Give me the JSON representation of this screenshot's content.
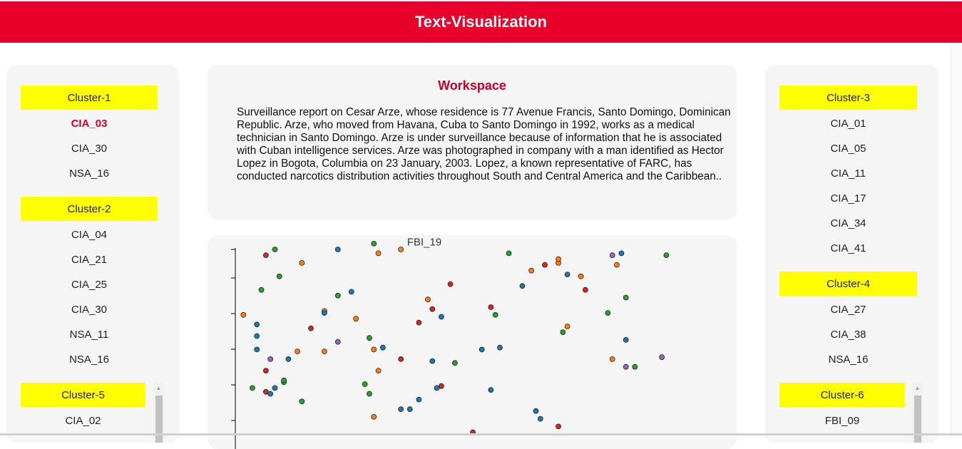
{
  "header": {
    "title": "Text-Visualization"
  },
  "left_panel": {
    "clusters": [
      {
        "label": "Cluster-1",
        "items": [
          "CIA_03",
          "CIA_30",
          "NSA_16"
        ]
      },
      {
        "label": "Cluster-2",
        "items": [
          "CIA_04",
          "CIA_21",
          "CIA_25",
          "CIA_30",
          "NSA_11",
          "NSA_16"
        ]
      },
      {
        "label": "Cluster-5",
        "items": [
          "CIA_02"
        ]
      }
    ],
    "active_item": "CIA_03"
  },
  "right_panel": {
    "clusters": [
      {
        "label": "Cluster-3",
        "items": [
          "CIA_01",
          "CIA_05",
          "CIA_11",
          "CIA_17",
          "CIA_34",
          "CIA_41"
        ]
      },
      {
        "label": "Cluster-4",
        "items": [
          "CIA_27",
          "CIA_38",
          "NSA_16"
        ]
      },
      {
        "label": "Cluster-6",
        "items": [
          "FBI_09"
        ]
      }
    ]
  },
  "workspace": {
    "title": "Workspace",
    "text": "Surveillance report on Cesar Arze, whose residence is 77 Avenue Francis, Santo Domingo, Dominican Republic. Arze, who moved from Havana, Cuba to Santo Domingo in 1992, works as a medical technician in Santo Domingo. Arze is under surveillance because of information that he is associated with Cuban intelligence services. Arze was photographed in company with a man identified as Hector Lopez in Bogota, Columbia on 23 January, 2003. Lopez, a known representative of FARC, has conducted narcotics distribution activities throughout South and Central America and the Caribbean.."
  },
  "scatter": {
    "hover_label": "FBI_19",
    "colors": {
      "red": "#d62728",
      "orange": "#ff7f0e",
      "blue": "#1f77b4",
      "green": "#2ca02c",
      "purple": "#9467bd"
    }
  },
  "chart_data": {
    "type": "scatter",
    "title": "",
    "xlabel": "",
    "ylabel": "",
    "grid": false,
    "xlim": [
      0,
      100
    ],
    "ylim": [
      0,
      100
    ],
    "series": [
      {
        "color": "red",
        "points": [
          [
            6,
            97
          ],
          [
            43,
            69
          ],
          [
            40,
            62
          ],
          [
            47,
            82
          ],
          [
            56,
            70
          ],
          [
            68,
            92
          ],
          [
            77,
            79
          ],
          [
            16,
            59
          ],
          [
            36,
            43
          ],
          [
            6,
            37
          ],
          [
            45,
            29
          ],
          [
            6,
            26
          ],
          [
            52,
            5
          ],
          [
            71,
            8
          ]
        ]
      },
      {
        "color": "orange",
        "points": [
          [
            14,
            93
          ],
          [
            31,
            98
          ],
          [
            36,
            100
          ],
          [
            42,
            74
          ],
          [
            26,
            64
          ],
          [
            19,
            68
          ],
          [
            30,
            48
          ],
          [
            65,
            89
          ],
          [
            76,
            86
          ],
          [
            71,
            93
          ],
          [
            71,
            95
          ],
          [
            73,
            60
          ],
          [
            84,
            92
          ],
          [
            13,
            47
          ],
          [
            19,
            47
          ],
          [
            83,
            43
          ],
          [
            31,
            37
          ],
          [
            1,
            66
          ],
          [
            30,
            13
          ]
        ]
      },
      {
        "color": "blue",
        "points": [
          [
            22,
            100
          ],
          [
            25,
            78
          ],
          [
            63,
            81
          ],
          [
            73,
            87
          ],
          [
            85,
            98
          ],
          [
            19,
            67
          ],
          [
            4,
            61
          ],
          [
            4,
            55
          ],
          [
            45,
            65
          ],
          [
            58,
            49
          ],
          [
            32,
            49
          ],
          [
            43,
            42
          ],
          [
            86,
            53
          ],
          [
            54,
            48
          ],
          [
            56,
            27
          ],
          [
            4,
            48
          ],
          [
            11,
            43
          ],
          [
            36,
            17
          ],
          [
            66,
            16
          ],
          [
            8,
            28
          ],
          [
            40,
            22
          ],
          [
            38,
            17
          ],
          [
            67,
            12
          ],
          [
            44,
            28
          ],
          [
            7,
            25
          ]
        ]
      },
      {
        "color": "green",
        "points": [
          [
            8,
            100
          ],
          [
            30,
            103
          ],
          [
            60,
            98
          ],
          [
            95,
            97
          ],
          [
            9,
            86
          ],
          [
            5,
            79
          ],
          [
            22,
            76
          ],
          [
            86,
            75
          ],
          [
            82,
            67
          ],
          [
            57,
            66
          ],
          [
            3,
            28
          ],
          [
            29,
            54
          ],
          [
            48,
            41
          ],
          [
            88,
            39
          ],
          [
            72,
            57
          ],
          [
            10,
            31
          ],
          [
            29,
            25
          ],
          [
            14,
            21
          ],
          [
            10,
            32
          ],
          [
            28,
            30
          ]
        ]
      },
      {
        "color": "purple",
        "points": [
          [
            83,
            97
          ],
          [
            22,
            52
          ],
          [
            94,
            44
          ],
          [
            86,
            39
          ],
          [
            7,
            43
          ]
        ]
      }
    ]
  }
}
